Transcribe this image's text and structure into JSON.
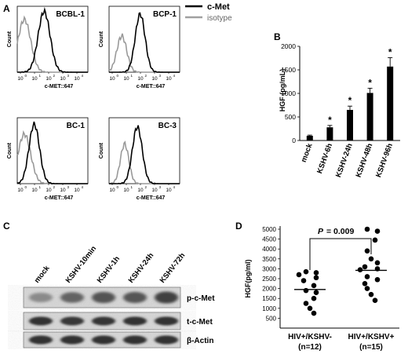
{
  "panel_labels": {
    "A": "A",
    "B": "B",
    "C": "C",
    "D": "D"
  },
  "panel_a": {
    "legend": [
      {
        "label": "c-Met",
        "color": "#000000"
      },
      {
        "label": "isotype",
        "color": "#a0a0a0"
      }
    ],
    "y_label": "Count",
    "x_label": "c-MET::647",
    "tick_exponents": [
      "0",
      "1",
      "2",
      "3",
      "4"
    ],
    "tick_base": "10",
    "histograms": [
      {
        "title": "BCBL-1"
      },
      {
        "title": "BCP-1"
      },
      {
        "title": "BC-1"
      },
      {
        "title": "BC-3"
      }
    ]
  },
  "chart_data": [
    {
      "type": "bar",
      "panel": "B",
      "ylabel": "HGF (pg/mL)",
      "categories": [
        "mock",
        "KSHV-6h",
        "KSHV-24h",
        "KSHV-48h",
        "KSHV-96h"
      ],
      "values": [
        100,
        280,
        650,
        1010,
        1570
      ],
      "errors": [
        15,
        40,
        80,
        100,
        190
      ],
      "significance": [
        "",
        "*",
        "*",
        "*",
        "*"
      ],
      "yticks": [
        0,
        500,
        1000,
        1500,
        2000
      ],
      "ylim": [
        0,
        2000
      ]
    },
    {
      "type": "scatter",
      "panel": "D",
      "ylabel": "HGF(pg/ml)",
      "ylim": [
        500,
        5000
      ],
      "yticks": [
        500,
        1000,
        1500,
        2000,
        2500,
        3000,
        3500,
        4000,
        4500,
        5000
      ],
      "p_value_label": "P",
      "p_value_text": "= 0.009",
      "groups": [
        {
          "label": "HIV+/KSHV-",
          "n_label": "(n=12)",
          "median": 1950,
          "points": [
            2850,
            2800,
            2700,
            2550,
            2400,
            2150,
            1900,
            1800,
            1500,
            1250,
            1000,
            750
          ]
        },
        {
          "label": "HIV+/KSHV+",
          "n_label": "(n=15)",
          "median": 2920,
          "points": [
            5000,
            4900,
            4450,
            3900,
            3500,
            3300,
            3100,
            3000,
            2950,
            2600,
            2450,
            2250,
            2000,
            1700,
            1400
          ]
        }
      ]
    }
  ],
  "panel_c": {
    "lanes": [
      "mock",
      "KSHV-10min",
      "KSHV-1h",
      "KSHV-24h",
      "KSHV-72h"
    ],
    "rows": [
      {
        "label": "p-c-Met"
      },
      {
        "label": "t-c-Met"
      },
      {
        "label": "β-Actin"
      }
    ]
  }
}
